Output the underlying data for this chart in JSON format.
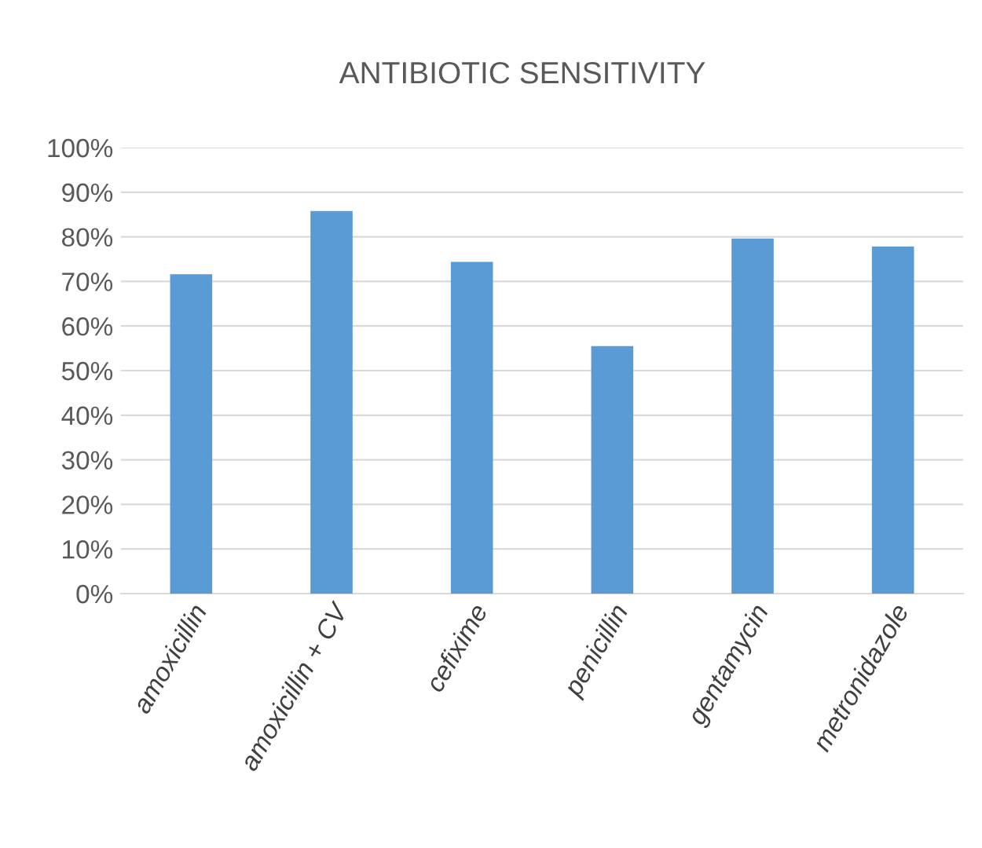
{
  "chart_data": {
    "type": "bar",
    "title": "ANTIBIOTIC SENSITIVITY",
    "categories": [
      "amoxicillin",
      "amoxicillin + CV",
      "cefixime",
      "penicillin",
      "gentamycin",
      "metronidazole"
    ],
    "values": [
      71.6,
      85.8,
      74.4,
      55.5,
      79.6,
      77.8
    ],
    "color": "#5b9bd5",
    "ylim": [
      0,
      100
    ],
    "yticks": [
      {
        "value": 0,
        "label": "0%"
      },
      {
        "value": 10,
        "label": "10%"
      },
      {
        "value": 20,
        "label": "20%"
      },
      {
        "value": 30,
        "label": "30%"
      },
      {
        "value": 40,
        "label": "40%"
      },
      {
        "value": 50,
        "label": "50%"
      },
      {
        "value": 60,
        "label": "60%"
      },
      {
        "value": 70,
        "label": "70%"
      },
      {
        "value": 80,
        "label": "80%"
      },
      {
        "value": 90,
        "label": "90%"
      },
      {
        "value": 100,
        "label": "100%"
      }
    ],
    "grid": "y",
    "legend": false
  }
}
